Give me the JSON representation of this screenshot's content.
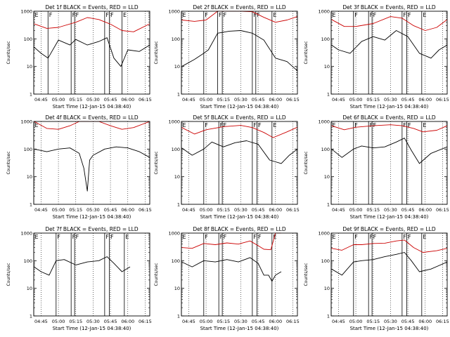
{
  "chart_data": [
    {
      "type": "line",
      "title": "Det 1f BLACK = Events, RED = LLD",
      "xlabel": "Start Time (12-Jan-15 04:38:40)",
      "ylabel": "Counts/sec",
      "y_scale": "log",
      "ylim": [
        1,
        1000
      ],
      "yticks": [
        "1",
        "10",
        "100",
        "1000"
      ],
      "x_ticks": [
        "04:45",
        "05:00",
        "05:15",
        "05:30",
        "05:45",
        "06:00",
        "06:15"
      ],
      "xlim": [
        "04:38:40",
        "06:19"
      ],
      "markers": [
        {
          "time": "04:38:40",
          "label": "E"
        },
        {
          "time": "04:51",
          "label": "F"
        },
        {
          "time": "05:11",
          "label": "F"
        },
        {
          "time": "05:14",
          "label": "F"
        },
        {
          "time": "05:40",
          "label": "F"
        },
        {
          "time": "05:44",
          "label": "F"
        },
        {
          "time": "05:55",
          "label": "E"
        }
      ],
      "series": [
        {
          "color": "#000000",
          "x": [
            "04:39",
            "04:45",
            "04:51",
            "05:00",
            "05:10",
            "05:15",
            "05:25",
            "05:35",
            "05:42",
            "05:48",
            "05:54",
            "06:00",
            "06:10",
            "06:19"
          ],
          "values": [
            50,
            30,
            20,
            90,
            60,
            95,
            60,
            80,
            110,
            20,
            10,
            40,
            35,
            60
          ]
        },
        {
          "color": "#cc0000",
          "x": [
            "04:39",
            "04:50",
            "05:00",
            "05:15",
            "05:25",
            "05:35",
            "05:45",
            "05:55",
            "06:05",
            "06:19"
          ],
          "values": [
            350,
            240,
            260,
            400,
            590,
            500,
            340,
            200,
            180,
            350
          ]
        }
      ]
    },
    {
      "type": "line",
      "title": "Det 2f BLACK = Events, RED = LLD",
      "xlabel": "Start Time (12-Jan-15 04:38:40)",
      "ylabel": "Counts/sec",
      "y_scale": "log",
      "ylim": [
        1,
        1000
      ],
      "yticks": [
        "1",
        "10",
        "100",
        "1000"
      ],
      "x_ticks": [
        "04:45",
        "05:00",
        "05:15",
        "05:30",
        "05:45",
        "06:00",
        "06:15"
      ],
      "xlim": [
        "04:38:40",
        "06:19"
      ],
      "markers": [
        {
          "time": "04:38:40",
          "label": "E"
        },
        {
          "time": "04:58",
          "label": "F"
        },
        {
          "time": "05:10",
          "label": "F"
        },
        {
          "time": "05:14",
          "label": "F"
        },
        {
          "time": "05:40",
          "label": "F"
        },
        {
          "time": "05:43",
          "label": "F"
        },
        {
          "time": "05:57",
          "label": "E"
        }
      ],
      "series": [
        {
          "color": "#000000",
          "x": [
            "04:39",
            "04:50",
            "04:58",
            "05:02",
            "05:10",
            "05:20",
            "05:30",
            "05:40",
            "05:50",
            "06:00",
            "06:10",
            "06:19"
          ],
          "values": [
            10,
            18,
            30,
            40,
            160,
            190,
            200,
            160,
            90,
            20,
            15,
            7
          ]
        },
        {
          "color": "#cc0000",
          "x": [
            "04:39",
            "04:50",
            "05:00",
            "05:10",
            "05:20",
            "05:30",
            "05:40",
            "05:50",
            "06:00",
            "06:10",
            "06:19"
          ],
          "values": [
            480,
            430,
            480,
            1000,
            1000,
            1000,
            960,
            600,
            400,
            480,
            640
          ]
        }
      ]
    },
    {
      "type": "line",
      "title": "Det 3f BLACK = Events, RED = LLD",
      "xlabel": "Start Time (12-Jan-15 04:38:40)",
      "ylabel": "Counts/sec",
      "y_scale": "log",
      "ylim": [
        1,
        1000
      ],
      "yticks": [
        "1",
        "10",
        "100",
        "1000"
      ],
      "x_ticks": [
        "04:45",
        "05:00",
        "05:15",
        "05:30",
        "05:45",
        "06:00",
        "06:15"
      ],
      "xlim": [
        "04:38:40",
        "06:19"
      ],
      "markers": [
        {
          "time": "04:38:40",
          "label": "E"
        },
        {
          "time": "04:58",
          "label": "F"
        },
        {
          "time": "05:11",
          "label": "F"
        },
        {
          "time": "05:14",
          "label": "F"
        },
        {
          "time": "05:40",
          "label": "F"
        },
        {
          "time": "05:44",
          "label": "F"
        },
        {
          "time": "05:57",
          "label": "E"
        }
      ],
      "series": [
        {
          "color": "#000000",
          "x": [
            "04:39",
            "04:45",
            "04:55",
            "05:05",
            "05:15",
            "05:25",
            "05:35",
            "05:45",
            "05:55",
            "06:05",
            "06:12",
            "06:19"
          ],
          "values": [
            60,
            40,
            30,
            80,
            120,
            90,
            200,
            120,
            30,
            20,
            40,
            60
          ]
        },
        {
          "color": "#cc0000",
          "x": [
            "04:39",
            "04:50",
            "05:00",
            "05:15",
            "05:30",
            "05:40",
            "05:50",
            "06:00",
            "06:10",
            "06:19"
          ],
          "values": [
            500,
            280,
            280,
            360,
            640,
            560,
            300,
            200,
            260,
            500
          ]
        }
      ]
    },
    {
      "type": "line",
      "title": "Det 4f BLACK = Events, RED = LLD",
      "xlabel": "Start Time (12-Jan-15 04:38:40)",
      "ylabel": "Counts/sec",
      "y_scale": "log",
      "ylim": [
        1,
        1000
      ],
      "yticks": [
        "1",
        "10",
        "100",
        "1000"
      ],
      "x_ticks": [
        "04:45",
        "05:00",
        "05:15",
        "05:30",
        "05:45",
        "06:00",
        "06:15"
      ],
      "xlim": [
        "04:38:40",
        "06:19"
      ],
      "markers": [
        {
          "time": "04:38:40",
          "label": "E"
        }
      ],
      "series": [
        {
          "color": "#000000",
          "x": [
            "04:39",
            "04:50",
            "05:00",
            "05:10",
            "05:18",
            "05:22",
            "05:25",
            "05:27",
            "05:30",
            "05:40",
            "05:50",
            "06:00",
            "06:10",
            "06:19"
          ],
          "values": [
            100,
            80,
            100,
            110,
            70,
            20,
            3,
            40,
            60,
            100,
            120,
            110,
            80,
            50
          ]
        },
        {
          "color": "#cc0000",
          "x": [
            "04:39",
            "04:50",
            "05:00",
            "05:10",
            "05:18",
            "05:25",
            "05:35",
            "05:45",
            "05:55",
            "06:05",
            "06:19"
          ],
          "values": [
            1000,
            560,
            520,
            700,
            1000,
            1000,
            1000,
            700,
            520,
            600,
            1000
          ]
        }
      ]
    },
    {
      "type": "line",
      "title": "Det 5f BLACK = Events, RED = LLD",
      "xlabel": "Start Time (12-Jan-15 04:38:40)",
      "ylabel": "Counts/sec",
      "y_scale": "log",
      "ylim": [
        1,
        1000
      ],
      "yticks": [
        "1",
        "10",
        "100",
        "1000"
      ],
      "x_ticks": [
        "04:45",
        "05:00",
        "05:15",
        "05:30",
        "05:45",
        "06:00",
        "06:15"
      ],
      "xlim": [
        "04:38:40",
        "06:19"
      ],
      "markers": [
        {
          "time": "04:38:40",
          "label": "E"
        },
        {
          "time": "04:58",
          "label": "F"
        },
        {
          "time": "05:11",
          "label": "F"
        },
        {
          "time": "05:14",
          "label": "F"
        },
        {
          "time": "05:40",
          "label": "F"
        },
        {
          "time": "05:44",
          "label": "F"
        },
        {
          "time": "05:57",
          "label": "E"
        }
      ],
      "series": [
        {
          "color": "#000000",
          "x": [
            "04:39",
            "04:48",
            "04:58",
            "05:05",
            "05:15",
            "05:25",
            "05:35",
            "05:45",
            "05:55",
            "06:05",
            "06:12",
            "06:19"
          ],
          "values": [
            110,
            60,
            100,
            180,
            120,
            170,
            200,
            150,
            40,
            30,
            60,
            100
          ]
        },
        {
          "color": "#cc0000",
          "x": [
            "04:39",
            "04:50",
            "05:00",
            "05:15",
            "05:30",
            "05:40",
            "05:50",
            "05:58",
            "06:10",
            "06:19"
          ],
          "values": [
            600,
            350,
            500,
            650,
            720,
            600,
            400,
            260,
            420,
            620
          ]
        }
      ]
    },
    {
      "type": "line",
      "title": "Det 6f BLACK = Events, RED = LLD",
      "xlabel": "Start Time (12-Jan-15 04:38:40)",
      "ylabel": "Counts/sec",
      "y_scale": "log",
      "ylim": [
        1,
        1000
      ],
      "yticks": [
        "1",
        "10",
        "100",
        "1000"
      ],
      "x_ticks": [
        "04:45",
        "05:00",
        "05:15",
        "05:30",
        "05:45",
        "06:00",
        "06:15"
      ],
      "xlim": [
        "04:38:40",
        "06:19"
      ],
      "markers": [
        {
          "time": "04:38:40",
          "label": "E"
        },
        {
          "time": "04:58",
          "label": "F"
        },
        {
          "time": "05:11",
          "label": "F"
        },
        {
          "time": "05:14",
          "label": "F"
        },
        {
          "time": "05:40",
          "label": "F"
        },
        {
          "time": "05:44",
          "label": "F"
        },
        {
          "time": "05:57",
          "label": "E"
        }
      ],
      "series": [
        {
          "color": "#000000",
          "x": [
            "04:39",
            "04:48",
            "04:58",
            "05:05",
            "05:15",
            "05:25",
            "05:35",
            "05:42",
            "05:48",
            "05:55",
            "06:05",
            "06:19"
          ],
          "values": [
            100,
            50,
            100,
            130,
            110,
            120,
            180,
            250,
            90,
            30,
            70,
            120
          ]
        },
        {
          "color": "#cc0000",
          "x": [
            "04:39",
            "04:50",
            "05:00",
            "05:15",
            "05:30",
            "05:40",
            "05:50",
            "05:58",
            "06:10",
            "06:19"
          ],
          "values": [
            700,
            500,
            620,
            700,
            760,
            700,
            560,
            420,
            480,
            700
          ]
        }
      ]
    },
    {
      "type": "line",
      "title": "Det 7f BLACK = Events, RED = LLD",
      "xlabel": "Start Time (12-Jan-15 04:38:40)",
      "ylabel": "Counts/sec",
      "y_scale": "log",
      "ylim": [
        1,
        1000
      ],
      "yticks": [
        "1",
        "10",
        "100",
        "1000"
      ],
      "x_ticks": [
        "04:45",
        "05:00",
        "05:15",
        "05:30",
        "05:45",
        "06:00",
        "06:15"
      ],
      "xlim": [
        "04:38:40",
        "06:19"
      ],
      "markers": [
        {
          "time": "04:38:40",
          "label": "E"
        },
        {
          "time": "04:58",
          "label": "F"
        },
        {
          "time": "05:11",
          "label": "F"
        },
        {
          "time": "05:14",
          "label": "F"
        },
        {
          "time": "05:40",
          "label": "F"
        },
        {
          "time": "05:44",
          "label": "F"
        },
        {
          "time": "05:57",
          "label": "E"
        }
      ],
      "series": [
        {
          "color": "#000000",
          "x": [
            "04:39",
            "04:45",
            "04:52",
            "04:58",
            "05:05",
            "05:15",
            "05:25",
            "05:35",
            "05:42",
            "05:48",
            "05:55",
            "06:02"
          ],
          "values": [
            60,
            40,
            30,
            100,
            110,
            70,
            90,
            100,
            140,
            80,
            40,
            60
          ]
        }
      ]
    },
    {
      "type": "line",
      "title": "Det 8f BLACK = Events, RED = LLD",
      "xlabel": "Start Time (12-Jan-15 04:38:40)",
      "ylabel": "Counts/sec",
      "y_scale": "log",
      "ylim": [
        1,
        1000
      ],
      "yticks": [
        "1",
        "10",
        "100",
        "1000"
      ],
      "x_ticks": [
        "04:45",
        "05:00",
        "05:15",
        "05:30",
        "05:45",
        "06:00",
        "06:15"
      ],
      "xlim": [
        "04:38:40",
        "06:19"
      ],
      "markers": [
        {
          "time": "04:38:40",
          "label": "E"
        },
        {
          "time": "04:58",
          "label": "F"
        },
        {
          "time": "05:11",
          "label": "F"
        },
        {
          "time": "05:14",
          "label": "F"
        },
        {
          "time": "05:40",
          "label": "F"
        },
        {
          "time": "05:44",
          "label": "F"
        },
        {
          "time": "05:57",
          "label": "E"
        }
      ],
      "series": [
        {
          "color": "#000000",
          "x": [
            "04:39",
            "04:48",
            "04:58",
            "05:08",
            "05:18",
            "05:28",
            "05:38",
            "05:45",
            "05:50",
            "05:54",
            "05:57",
            "06:00",
            "06:05"
          ],
          "values": [
            90,
            60,
            100,
            90,
            110,
            90,
            130,
            80,
            30,
            30,
            18,
            30,
            40
          ]
        },
        {
          "color": "#cc0000",
          "x": [
            "04:39",
            "04:48",
            "04:58",
            "05:08",
            "05:18",
            "05:28",
            "05:38",
            "05:45",
            "05:50",
            "05:56",
            "06:00",
            "06:05"
          ],
          "values": [
            300,
            280,
            420,
            380,
            440,
            400,
            520,
            350,
            260,
            250,
            1000,
            1000
          ]
        }
      ]
    },
    {
      "type": "line",
      "title": "Det 9f BLACK = Events, RED = LLD",
      "xlabel": "Start Time (12-Jan-15 04:38:40)",
      "ylabel": "Counts/sec",
      "y_scale": "log",
      "ylim": [
        1,
        1000
      ],
      "yticks": [
        "1",
        "10",
        "100",
        "1000"
      ],
      "x_ticks": [
        "04:45",
        "05:00",
        "05:15",
        "05:30",
        "05:45",
        "06:00",
        "06:15"
      ],
      "xlim": [
        "04:38:40",
        "06:19"
      ],
      "markers": [
        {
          "time": "04:38:40",
          "label": "E"
        },
        {
          "time": "04:58",
          "label": "F"
        },
        {
          "time": "05:11",
          "label": "F"
        },
        {
          "time": "05:14",
          "label": "F"
        },
        {
          "time": "05:40",
          "label": "F"
        },
        {
          "time": "05:44",
          "label": "F"
        },
        {
          "time": "05:57",
          "label": "E"
        }
      ],
      "series": [
        {
          "color": "#000000",
          "x": [
            "04:39",
            "04:48",
            "04:58",
            "05:05",
            "05:15",
            "05:25",
            "05:35",
            "05:42",
            "05:48",
            "05:55",
            "06:05",
            "06:19"
          ],
          "values": [
            50,
            30,
            90,
            100,
            110,
            140,
            170,
            200,
            100,
            40,
            50,
            90
          ]
        },
        {
          "color": "#cc0000",
          "x": [
            "04:39",
            "04:48",
            "04:58",
            "05:05",
            "05:15",
            "05:25",
            "05:35",
            "05:42",
            "05:50",
            "05:58",
            "06:10",
            "06:19"
          ],
          "values": [
            280,
            240,
            380,
            380,
            420,
            430,
            520,
            560,
            300,
            200,
            230,
            280
          ]
        }
      ]
    }
  ]
}
